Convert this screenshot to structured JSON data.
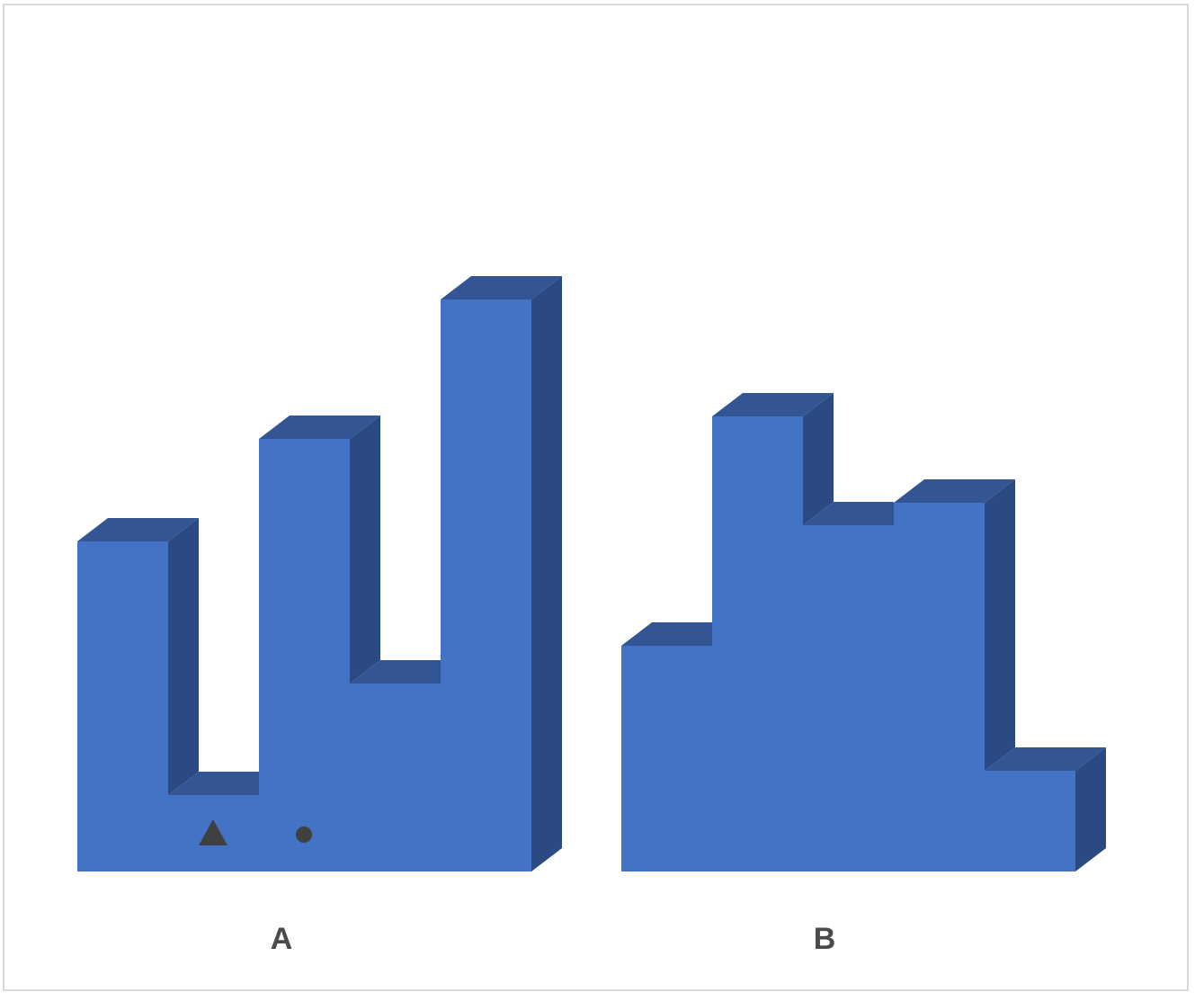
{
  "figure": {
    "labels": [
      "A",
      "B"
    ],
    "colors": {
      "front": "#4472C4",
      "side": "#2B4A83",
      "top": "#335593",
      "marker": "#404040",
      "border": "#d9d9d9"
    },
    "markers": [
      "triangle-icon",
      "dot-icon"
    ]
  }
}
